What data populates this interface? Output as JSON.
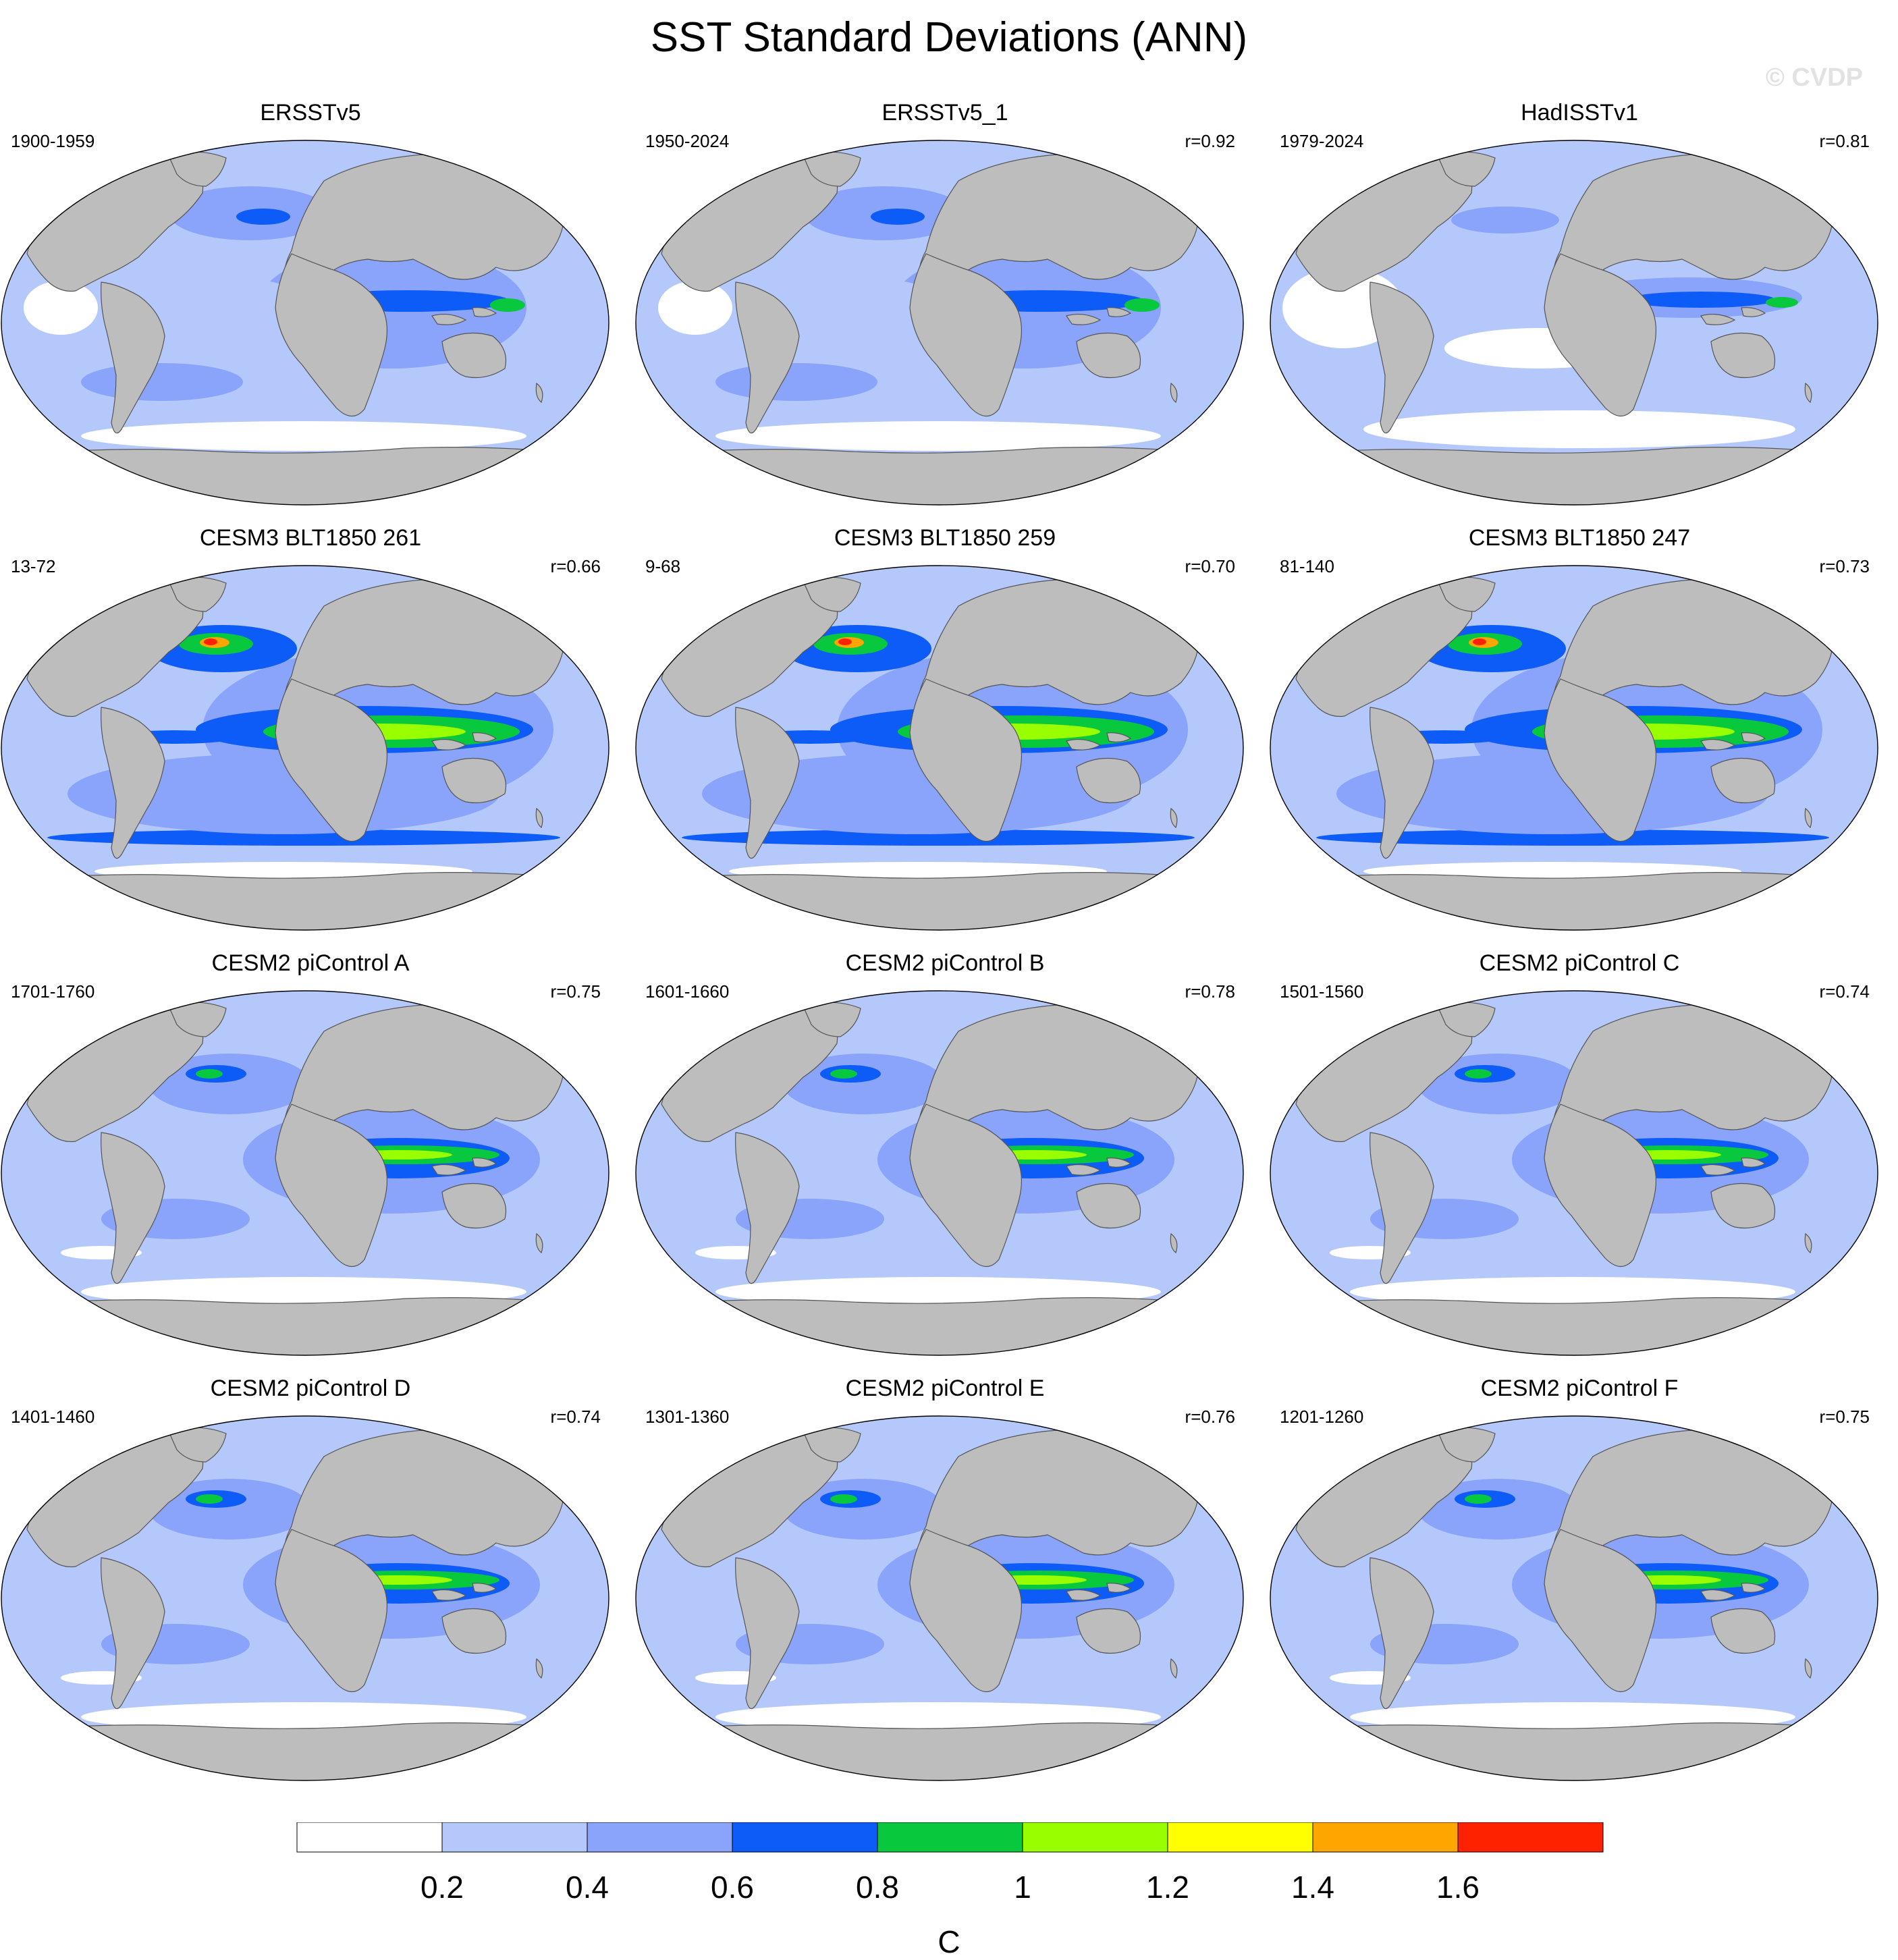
{
  "title": "SST Standard Deviations (ANN)",
  "watermark": "© CVDP",
  "colors": {
    "land": "#bdbdbd",
    "levels": [
      "#ffffff",
      "#b5c8fc",
      "#8aa3fb",
      "#0d5cf8",
      "#08c83d",
      "#99ff00",
      "#ffff00",
      "#ffa500",
      "#ff2200"
    ]
  },
  "panels": [
    {
      "title": "ERSSTv5",
      "period": "1900-1959",
      "corr": "",
      "style": "obs"
    },
    {
      "title": "ERSSTv5_1",
      "period": "1950-2024",
      "corr": "r=0.92",
      "style": "obs"
    },
    {
      "title": "HadISSTv1",
      "period": "1979-2024",
      "corr": "r=0.81",
      "style": "obs2"
    },
    {
      "title": "CESM3 BLT1850 261",
      "period": "13-72",
      "corr": "r=0.66",
      "style": "cesm3"
    },
    {
      "title": "CESM3 BLT1850 259",
      "period": "9-68",
      "corr": "r=0.70",
      "style": "cesm3"
    },
    {
      "title": "CESM3 BLT1850 247",
      "period": "81-140",
      "corr": "r=0.73",
      "style": "cesm3"
    },
    {
      "title": "CESM2 piControl A",
      "period": "1701-1760",
      "corr": "r=0.75",
      "style": "cesm2"
    },
    {
      "title": "CESM2 piControl B",
      "period": "1601-1660",
      "corr": "r=0.78",
      "style": "cesm2"
    },
    {
      "title": "CESM2 piControl C",
      "period": "1501-1560",
      "corr": "r=0.74",
      "style": "cesm2"
    },
    {
      "title": "CESM2 piControl D",
      "period": "1401-1460",
      "corr": "r=0.74",
      "style": "cesm2"
    },
    {
      "title": "CESM2 piControl E",
      "period": "1301-1360",
      "corr": "r=0.76",
      "style": "cesm2"
    },
    {
      "title": "CESM2 piControl F",
      "period": "1201-1260",
      "corr": "r=0.75",
      "style": "cesm2"
    }
  ],
  "colorbar": {
    "unit": "C",
    "tick_labels": [
      "0.2",
      "0.4",
      "0.6",
      "0.8",
      "1",
      "1.2",
      "1.4",
      "1.6"
    ]
  }
}
